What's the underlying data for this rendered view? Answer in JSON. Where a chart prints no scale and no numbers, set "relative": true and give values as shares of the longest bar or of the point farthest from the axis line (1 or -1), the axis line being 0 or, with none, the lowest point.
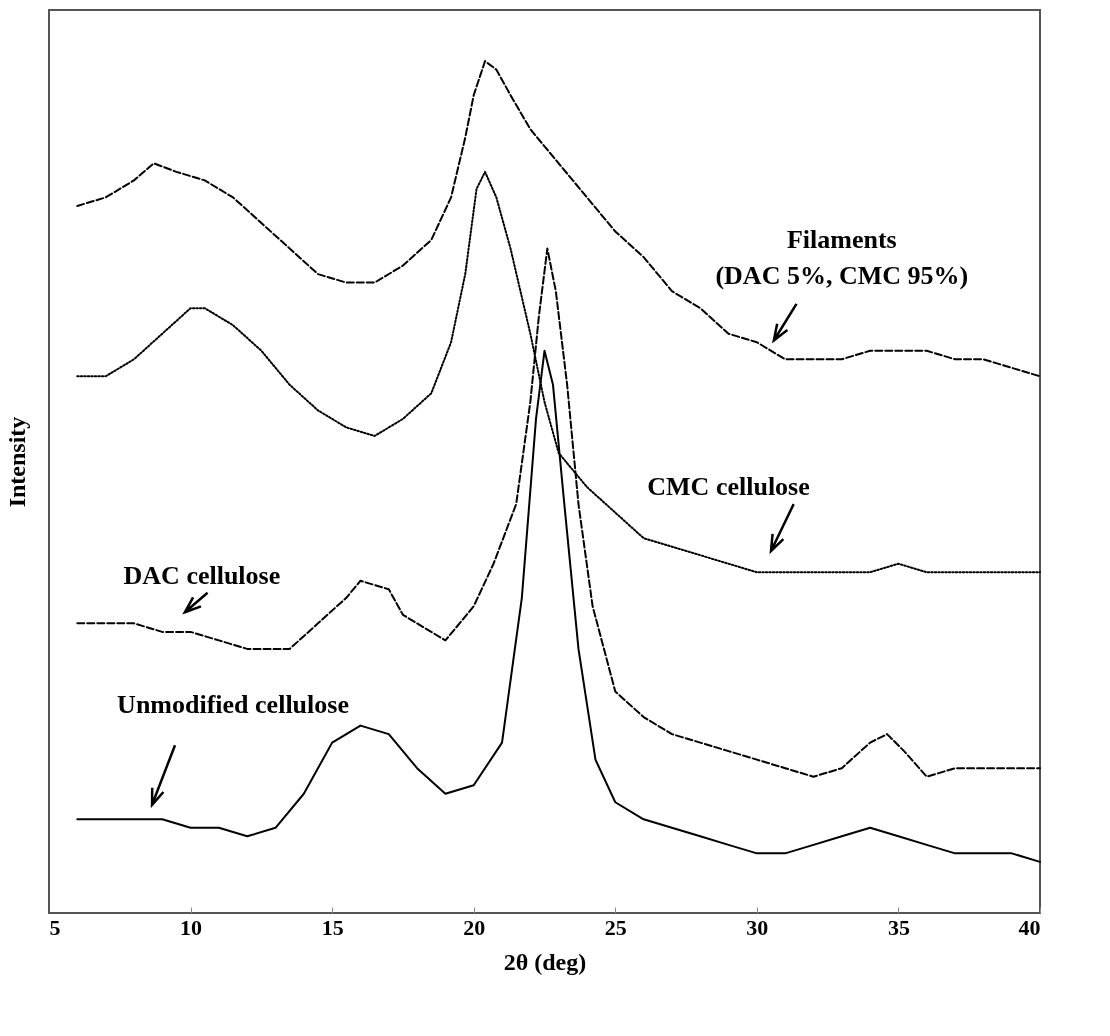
{
  "chart_data": {
    "type": "line",
    "relative": true,
    "xlabel": "2θ (deg)",
    "ylabel": "Intensity",
    "xlim": [
      5,
      40
    ],
    "xticks": [
      5,
      10,
      15,
      20,
      25,
      30,
      35,
      40
    ],
    "grid": false,
    "tick_labels": "x",
    "marker": "none",
    "series": [
      {
        "name": "Filaments (DAC 5%, CMC 95%)",
        "color": "#000000",
        "line_style": "dashed",
        "x": [
          6,
          7,
          8,
          8.7,
          9.5,
          10.5,
          11.5,
          12.5,
          13.5,
          14.5,
          15.5,
          16.5,
          17.5,
          18.5,
          19.2,
          19.7,
          20,
          20.4,
          20.8,
          21.3,
          22,
          23,
          24,
          25,
          26,
          27,
          28,
          29,
          30,
          31,
          32,
          33,
          34,
          35,
          36,
          37,
          38,
          39,
          40
        ],
        "values": [
          0.83,
          0.84,
          0.86,
          0.88,
          0.87,
          0.86,
          0.84,
          0.81,
          0.78,
          0.75,
          0.74,
          0.74,
          0.76,
          0.79,
          0.84,
          0.91,
          0.96,
          1,
          0.99,
          0.96,
          0.92,
          0.88,
          0.84,
          0.8,
          0.77,
          0.73,
          0.71,
          0.68,
          0.67,
          0.65,
          0.65,
          0.65,
          0.66,
          0.66,
          0.66,
          0.65,
          0.65,
          0.64,
          0.63
        ]
      },
      {
        "name": "CMC cellulose",
        "color": "#000000",
        "line_style": "dotted",
        "x": [
          6,
          7,
          8,
          9,
          10,
          10.5,
          11.5,
          12.5,
          13.5,
          14.5,
          15.5,
          16.5,
          17.5,
          18.5,
          19.2,
          19.7,
          20.1,
          20.4,
          20.8,
          21.3,
          22,
          22.5,
          23,
          24,
          25,
          26,
          27,
          28,
          29,
          30,
          31,
          32,
          33,
          34,
          35,
          36,
          37,
          38,
          39,
          40
        ],
        "values": [
          0.63,
          0.63,
          0.65,
          0.68,
          0.71,
          0.71,
          0.69,
          0.66,
          0.62,
          0.59,
          0.57,
          0.56,
          0.58,
          0.61,
          0.67,
          0.75,
          0.85,
          0.87,
          0.84,
          0.78,
          0.68,
          0.6,
          0.54,
          0.5,
          0.47,
          0.44,
          0.43,
          0.42,
          0.41,
          0.4,
          0.4,
          0.4,
          0.4,
          0.4,
          0.41,
          0.4,
          0.4,
          0.4,
          0.4,
          0.4
        ]
      },
      {
        "name": "DAC cellulose",
        "color": "#000000",
        "line_style": "dashed",
        "x": [
          6,
          7,
          8,
          9,
          10,
          11,
          12,
          13,
          13.5,
          14.5,
          15.5,
          16,
          17,
          17.5,
          18.5,
          19,
          19.5,
          20,
          20.7,
          21.5,
          22,
          22.3,
          22.6,
          22.9,
          23.3,
          23.7,
          24.2,
          25,
          26,
          27,
          28,
          29,
          30,
          31,
          32,
          33,
          34,
          34.6,
          35.2,
          36,
          37,
          38,
          39,
          40
        ],
        "values": [
          0.34,
          0.34,
          0.34,
          0.33,
          0.33,
          0.32,
          0.31,
          0.31,
          0.31,
          0.34,
          0.37,
          0.39,
          0.38,
          0.35,
          0.33,
          0.32,
          0.34,
          0.36,
          0.41,
          0.48,
          0.6,
          0.7,
          0.78,
          0.73,
          0.62,
          0.48,
          0.36,
          0.26,
          0.23,
          0.21,
          0.2,
          0.19,
          0.18,
          0.17,
          0.16,
          0.17,
          0.2,
          0.21,
          0.19,
          0.16,
          0.17,
          0.17,
          0.17,
          0.17
        ]
      },
      {
        "name": "Unmodified cellulose",
        "color": "#000000",
        "line_style": "solid",
        "x": [
          6,
          7,
          8,
          9,
          10,
          11,
          12,
          13,
          14,
          15,
          16,
          17,
          18,
          19,
          20,
          21,
          21.7,
          22.2,
          22.5,
          22.8,
          23.2,
          23.7,
          24.3,
          25,
          26,
          27,
          28,
          29,
          30,
          31,
          32,
          33,
          34,
          35,
          36,
          37,
          38,
          39,
          40
        ],
        "values": [
          0.11,
          0.11,
          0.11,
          0.11,
          0.1,
          0.1,
          0.09,
          0.1,
          0.14,
          0.2,
          0.22,
          0.21,
          0.17,
          0.14,
          0.15,
          0.2,
          0.37,
          0.58,
          0.66,
          0.62,
          0.48,
          0.31,
          0.18,
          0.13,
          0.11,
          0.1,
          0.09,
          0.08,
          0.07,
          0.07,
          0.08,
          0.09,
          0.1,
          0.09,
          0.08,
          0.07,
          0.07,
          0.07,
          0.06
        ]
      }
    ]
  }
}
